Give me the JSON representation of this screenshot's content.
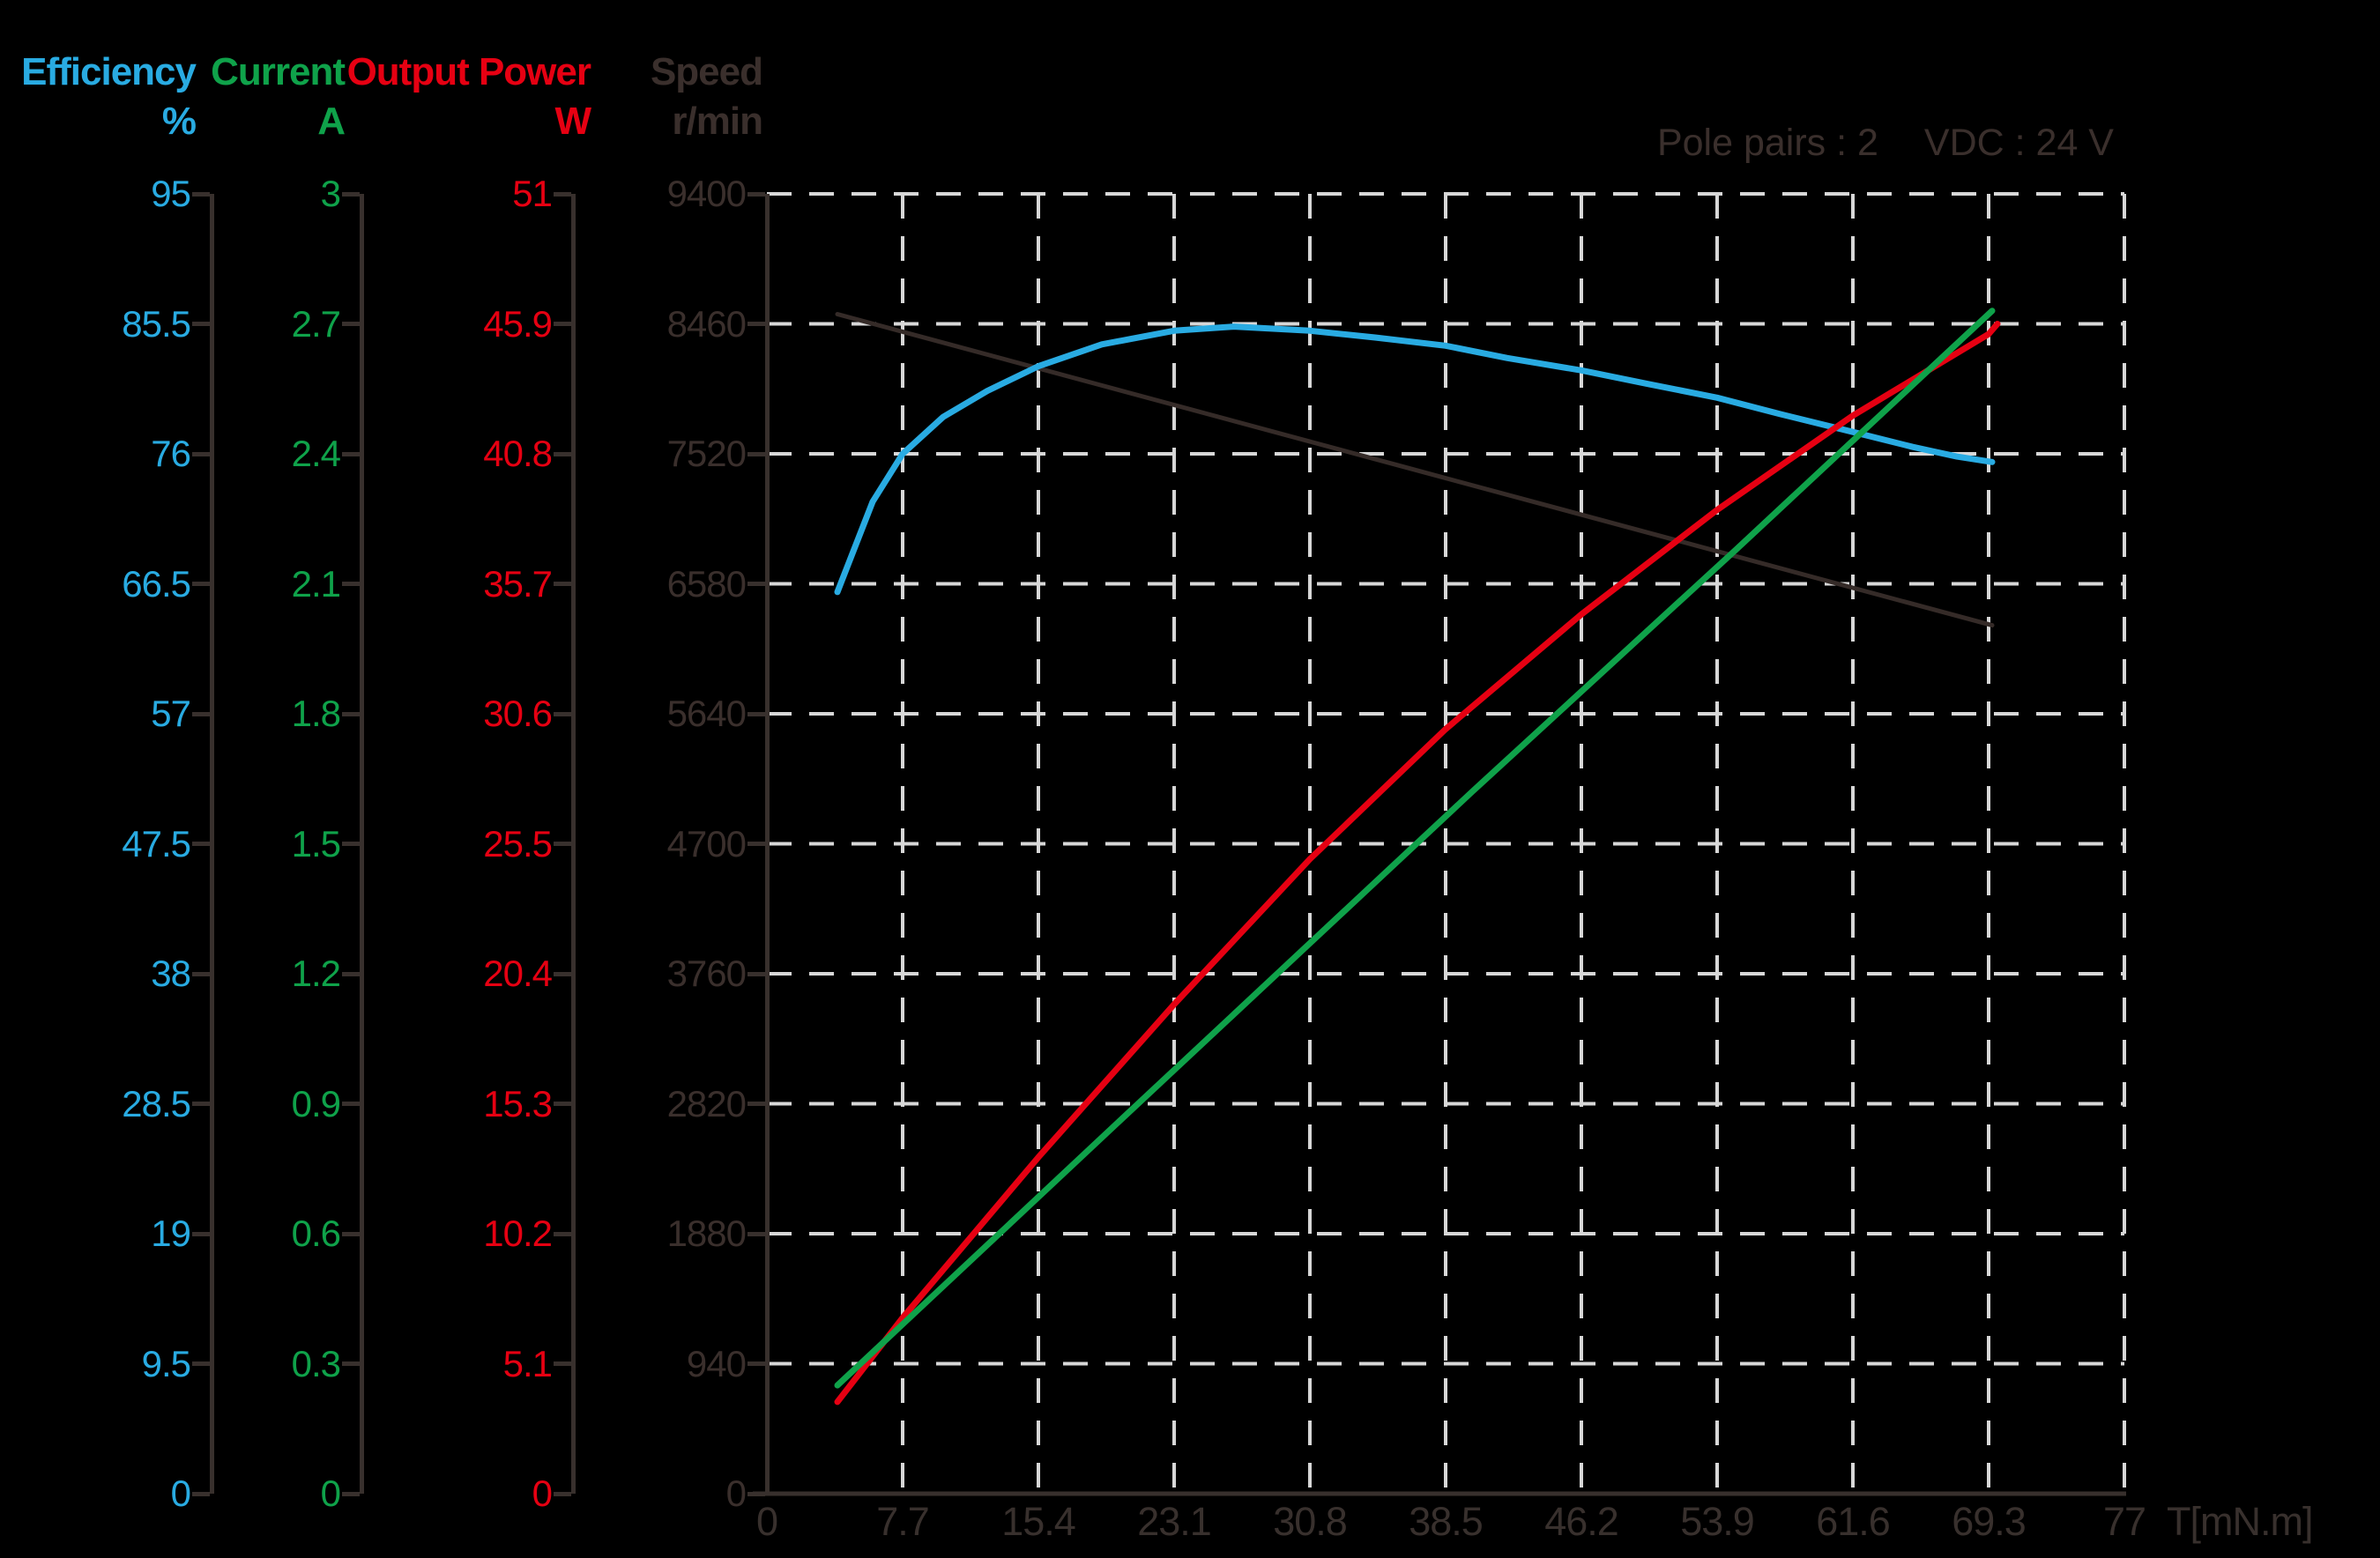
{
  "header": {
    "columns": [
      {
        "id": "efficiency",
        "title": "Efficiency",
        "unit": "%",
        "color": "#29ABE2"
      },
      {
        "id": "current",
        "title": "Current",
        "unit": "A",
        "color": "#0FA24A"
      },
      {
        "id": "output_power",
        "title": "Output Power",
        "unit": "W",
        "color": "#E60012"
      },
      {
        "id": "speed",
        "title": "Speed",
        "unit": "r/min",
        "color": "#3A2F2C"
      }
    ]
  },
  "annotation": {
    "pole_pairs": "Pole pairs : 2",
    "vdc": "VDC : 24 V"
  },
  "colors": {
    "background": "#000000",
    "axis_dark": "#38302D",
    "gridline": "#D7D7D7",
    "efficiency": "#29ABE2",
    "current": "#0FA24A",
    "output_power": "#E60012",
    "speed": "#3A2F2C"
  },
  "chart_data": {
    "type": "line",
    "title": "",
    "grid": "dashed",
    "x_axis": {
      "label": "T[mN.m]",
      "min": 0,
      "max": 77,
      "ticks": [
        0,
        7.7,
        15.4,
        23.1,
        30.8,
        38.5,
        46.2,
        53.9,
        61.6,
        69.3,
        77
      ]
    },
    "y_axes": [
      {
        "id": "efficiency",
        "name": "Efficiency",
        "unit": "%",
        "color": "#29ABE2",
        "min": 0,
        "max": 95,
        "ticks": [
          95,
          85.5,
          76,
          66.5,
          57,
          47.5,
          38,
          28.5,
          19,
          9.5,
          0
        ]
      },
      {
        "id": "current",
        "name": "Current",
        "unit": "A",
        "color": "#0FA24A",
        "min": 0,
        "max": 3,
        "ticks": [
          3,
          2.7,
          2.4,
          2.1,
          1.8,
          1.5,
          1.2,
          0.9,
          0.6,
          0.3,
          0
        ]
      },
      {
        "id": "output_power",
        "name": "Output Power",
        "unit": "W",
        "color": "#E60012",
        "min": 0,
        "max": 51,
        "ticks": [
          51,
          45.9,
          40.8,
          35.7,
          30.6,
          25.5,
          20.4,
          15.3,
          10.2,
          5.1,
          0
        ]
      },
      {
        "id": "speed",
        "name": "Speed",
        "unit": "r/min",
        "color": "#3A2F2C",
        "min": 0,
        "max": 9400,
        "ticks": [
          9400,
          8460,
          7520,
          6580,
          5640,
          4700,
          3760,
          2820,
          1880,
          940,
          0
        ]
      }
    ],
    "series": [
      {
        "id": "speed",
        "name": "Speed",
        "axis": "speed",
        "color": "#352B28",
        "points": [
          [
            4.0,
            8530
          ],
          [
            36.0,
            7430
          ],
          [
            69.5,
            6280
          ]
        ]
      },
      {
        "id": "efficiency",
        "name": "Efficiency",
        "axis": "efficiency",
        "color": "#29ABE2",
        "points": [
          [
            4.0,
            65.9
          ],
          [
            6.0,
            72.5
          ],
          [
            7.7,
            76.0
          ],
          [
            10.0,
            78.7
          ],
          [
            12.5,
            80.6
          ],
          [
            15.4,
            82.4
          ],
          [
            19.0,
            84.0
          ],
          [
            23.1,
            85.0
          ],
          [
            26.5,
            85.3
          ],
          [
            30.8,
            85.0
          ],
          [
            34.5,
            84.5
          ],
          [
            38.5,
            83.9
          ],
          [
            42.0,
            83.0
          ],
          [
            46.2,
            82.1
          ],
          [
            50.0,
            81.1
          ],
          [
            53.9,
            80.1
          ],
          [
            57.5,
            78.9
          ],
          [
            61.6,
            77.6
          ],
          [
            65.0,
            76.5
          ],
          [
            67.5,
            75.8
          ],
          [
            69.5,
            75.4
          ]
        ]
      },
      {
        "id": "output_power",
        "name": "Output Power",
        "axis": "output_power",
        "color": "#E60012",
        "points": [
          [
            4.0,
            3.6
          ],
          [
            7.7,
            6.9
          ],
          [
            15.4,
            13.2
          ],
          [
            23.1,
            19.2
          ],
          [
            30.8,
            24.9
          ],
          [
            38.5,
            30.0
          ],
          [
            46.2,
            34.5
          ],
          [
            53.9,
            38.6
          ],
          [
            61.6,
            42.3
          ],
          [
            69.3,
            45.5
          ],
          [
            69.8,
            45.9
          ]
        ]
      },
      {
        "id": "current",
        "name": "Current",
        "axis": "current",
        "color": "#0FA24A",
        "points": [
          [
            4.0,
            0.25
          ],
          [
            20.0,
            0.86
          ],
          [
            40.0,
            1.62
          ],
          [
            55.0,
            2.18
          ],
          [
            69.5,
            2.73
          ]
        ]
      }
    ]
  }
}
